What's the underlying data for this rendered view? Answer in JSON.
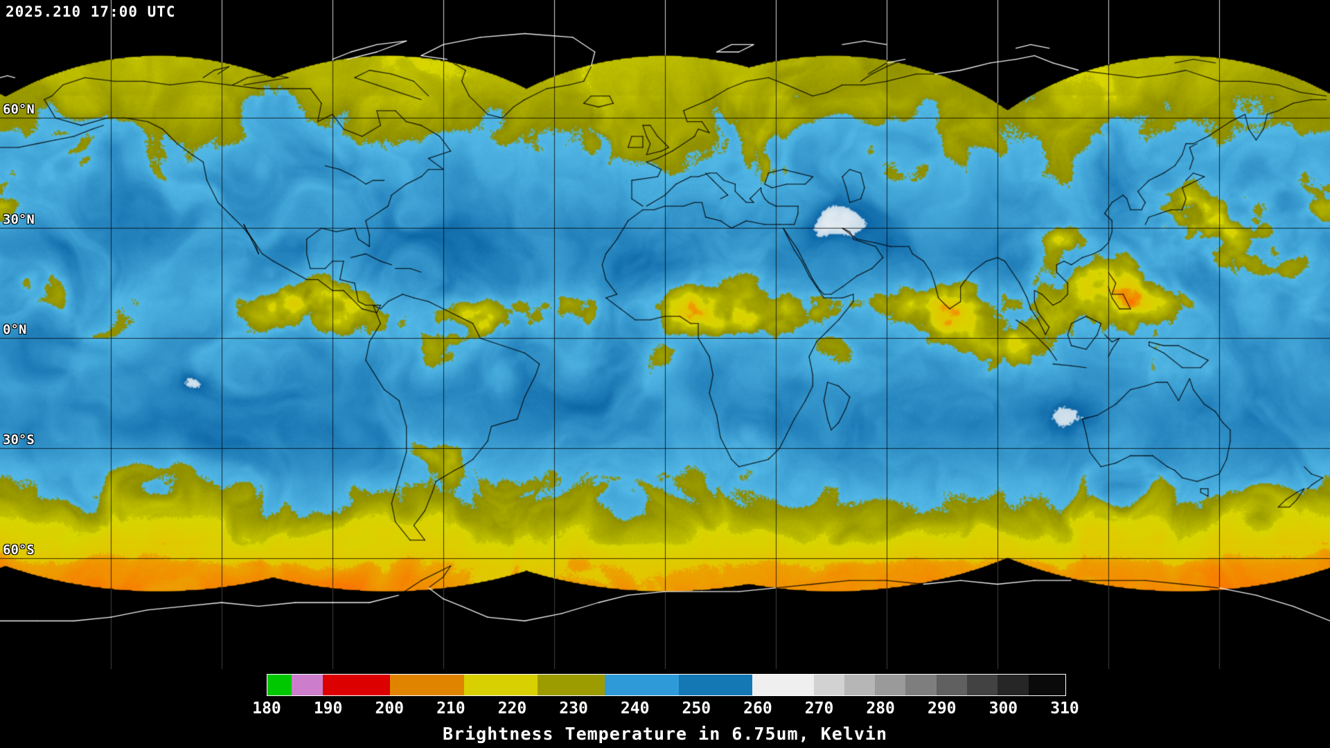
{
  "header": {
    "timestamp": "2025.210 17:00 UTC"
  },
  "map": {
    "projection": "equirectangular",
    "grid_spacing_deg": 30,
    "lat_labels": [
      {
        "label": "60°N",
        "deg": 60
      },
      {
        "label": "30°N",
        "deg": 30
      },
      {
        "label": "0°N",
        "deg": 0
      },
      {
        "label": "30°S",
        "deg": -30
      },
      {
        "label": "60°S",
        "deg": -60
      }
    ]
  },
  "legend": {
    "caption": "Brightness Temperature in 6.75um, Kelvin",
    "unit": "Kelvin",
    "range": [
      180,
      310
    ],
    "ticks": [
      180,
      190,
      200,
      210,
      220,
      230,
      240,
      250,
      260,
      270,
      280,
      290,
      300,
      310
    ],
    "segments": [
      {
        "from": 180,
        "to": 184,
        "color": "#00c800"
      },
      {
        "from": 184,
        "to": 189,
        "color": "#cc7ecc"
      },
      {
        "from": 189,
        "to": 200,
        "color": "#dd0000"
      },
      {
        "from": 200,
        "to": 212,
        "color": "#e08400"
      },
      {
        "from": 212,
        "to": 224,
        "color": "#d8d000"
      },
      {
        "from": 224,
        "to": 235,
        "color": "#9c9c00"
      },
      {
        "from": 235,
        "to": 247,
        "color": "#2f9ad8"
      },
      {
        "from": 247,
        "to": 259,
        "color": "#1478b4"
      },
      {
        "from": 259,
        "to": 269,
        "color": "#efefef"
      },
      {
        "from": 269,
        "to": 274,
        "color": "#d2d2d2"
      },
      {
        "from": 274,
        "to": 279,
        "color": "#b6b6b6"
      },
      {
        "from": 279,
        "to": 284,
        "color": "#9a9a9a"
      },
      {
        "from": 284,
        "to": 289,
        "color": "#7e7e7e"
      },
      {
        "from": 289,
        "to": 294,
        "color": "#606060"
      },
      {
        "from": 294,
        "to": 299,
        "color": "#424242"
      },
      {
        "from": 299,
        "to": 304,
        "color": "#262626"
      },
      {
        "from": 304,
        "to": 310,
        "color": "#0a0a0a"
      }
    ]
  }
}
